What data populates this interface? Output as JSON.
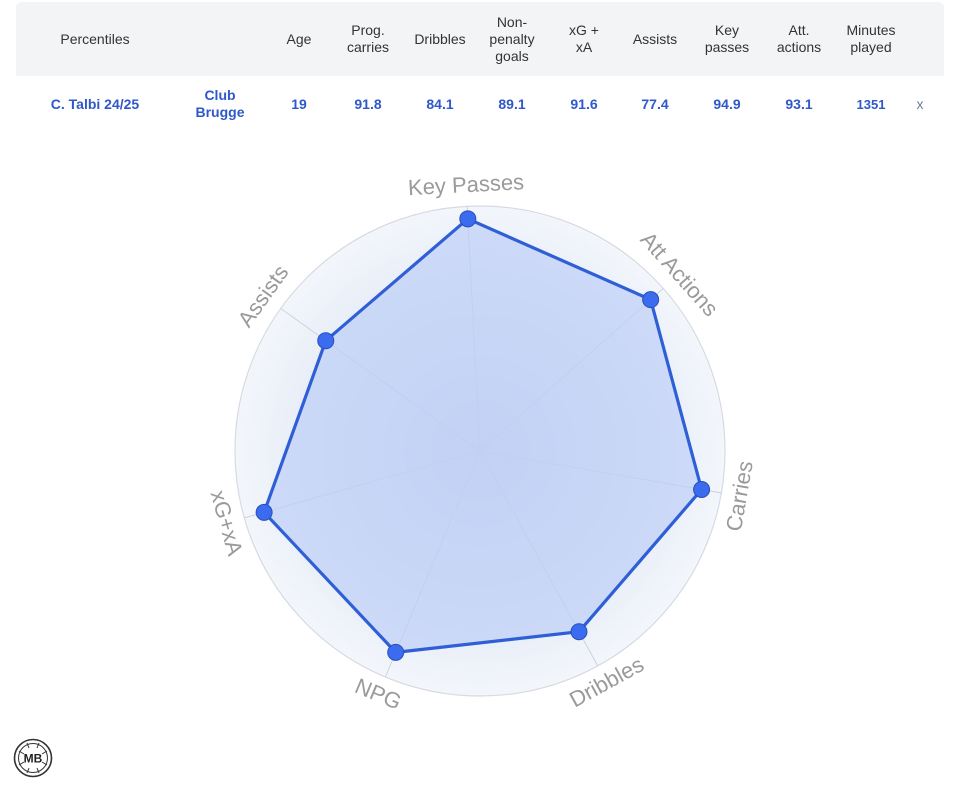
{
  "table": {
    "headers": {
      "percentiles": "Percentiles",
      "age": "Age",
      "prog_carries": "Prog.\ncarries",
      "dribbles": "Dribbles",
      "npg": "Non-\npenalty\ngoals",
      "xgxa": "xG +\nxA",
      "assists": "Assists",
      "key_passes": "Key\npasses",
      "att_actions": "Att.\nactions",
      "minutes": "Minutes\nplayed"
    },
    "row": {
      "player": "C. Talbi 24/25",
      "club": "Club\nBrugge",
      "age": "19",
      "prog_carries": "91.8",
      "dribbles": "84.1",
      "npg": "89.1",
      "xgxa": "91.6",
      "assists": "77.4",
      "key_passes": "94.9",
      "att_actions": "93.1",
      "minutes": "1351",
      "remove": "x"
    }
  },
  "chart_data": {
    "type": "radar",
    "axes": [
      "Key Passes",
      "Att Actions",
      "Carries",
      "Dribbles",
      "NPG",
      "xG+xA",
      "Assists"
    ],
    "values": [
      94.9,
      93.1,
      91.8,
      84.1,
      89.1,
      91.6,
      77.4
    ],
    "range": [
      0,
      100
    ],
    "colors": {
      "line": "#2f5fd6",
      "fill": "#bfd0f7",
      "point": "#3b6cf0",
      "grid": "#d5dae3",
      "label": "#9a9a9a"
    }
  },
  "logo": {
    "text": "MB",
    "icon": "mb-badge-icon"
  }
}
